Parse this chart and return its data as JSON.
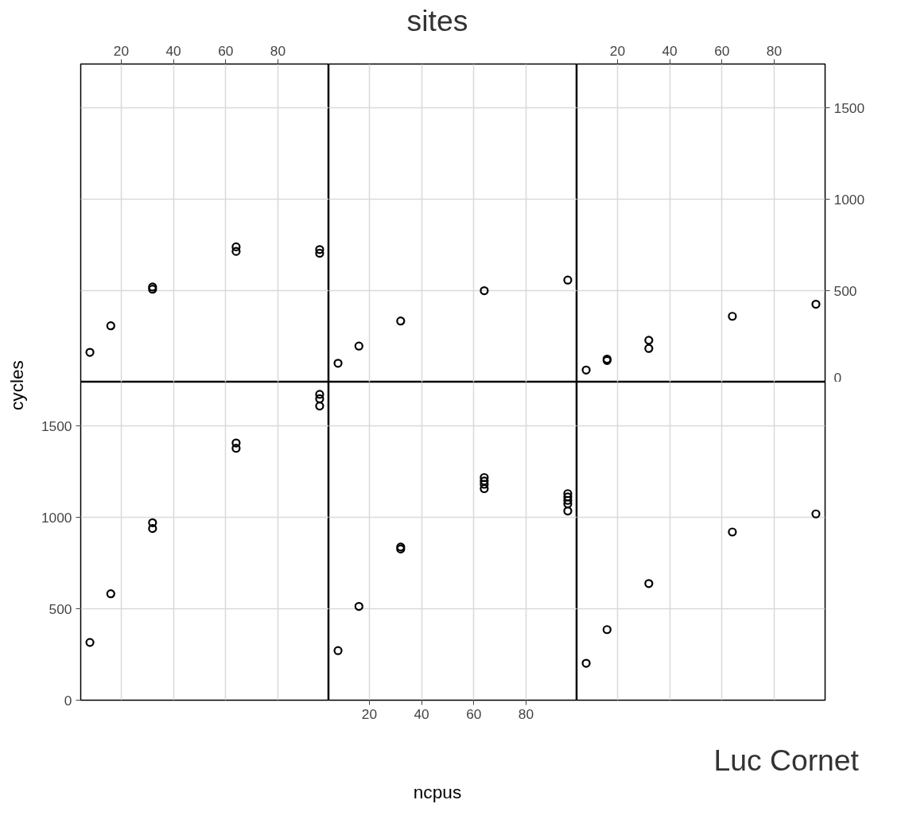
{
  "chart_data": [
    {
      "type": "scatter",
      "x": [
        8,
        16,
        32,
        32,
        64,
        64,
        96,
        96
      ],
      "values": [
        163,
        308,
        520,
        508,
        740,
        715,
        725,
        705
      ],
      "color": "#000000",
      "marker": "circle",
      "xlim": [
        4.48,
        99.52
      ],
      "ylim": [
        0,
        1740
      ],
      "xticks": [
        20,
        40,
        60,
        80
      ],
      "yticks": [
        0,
        500,
        1000,
        1500
      ],
      "grid": true,
      "tick_labels": "x"
    },
    {
      "type": "scatter",
      "title": "sites",
      "x": [
        8,
        16,
        32,
        64,
        96
      ],
      "values": [
        103,
        197,
        334,
        500,
        558
      ],
      "color": "#000000",
      "marker": "circle",
      "xlim": [
        4.48,
        99.52
      ],
      "ylim": [
        0,
        1740
      ],
      "xticks": [
        20,
        40,
        60,
        80
      ],
      "yticks": [
        0,
        500,
        1000,
        1500
      ],
      "grid": true,
      "tick_labels": false
    },
    {
      "type": "scatter",
      "x": [
        8,
        16,
        16,
        32,
        32,
        64,
        96
      ],
      "values": [
        66,
        126,
        118,
        229,
        184,
        360,
        426
      ],
      "color": "#000000",
      "marker": "circle",
      "xlim": [
        4.48,
        99.52
      ],
      "ylim": [
        0,
        1740
      ],
      "xticks": [
        20,
        40,
        60,
        80
      ],
      "yticks": [
        0,
        500,
        1000,
        1500
      ],
      "grid": true,
      "tick_labels": "xy"
    },
    {
      "type": "scatter",
      "ylabel": "cycles",
      "x": [
        8,
        16,
        32,
        32,
        64,
        64,
        96,
        96,
        96
      ],
      "values": [
        316,
        582,
        971,
        939,
        1407,
        1378,
        1673,
        1649,
        1609
      ],
      "color": "#000000",
      "marker": "circle",
      "xlim": [
        4.48,
        99.52
      ],
      "ylim": [
        0,
        1740
      ],
      "xticks": [
        20,
        40,
        60,
        80
      ],
      "yticks": [
        0,
        500,
        1000,
        1500
      ],
      "grid": true,
      "tick_labels": "y"
    },
    {
      "type": "scatter",
      "xlabel": "ncpus",
      "x": [
        8,
        16,
        32,
        32,
        64,
        64,
        64,
        64,
        96,
        96,
        96,
        96,
        96
      ],
      "values": [
        271,
        513,
        838,
        827,
        1218,
        1199,
        1181,
        1157,
        1130,
        1112,
        1093,
        1074,
        1035
      ],
      "color": "#000000",
      "marker": "circle",
      "xlim": [
        4.48,
        99.52
      ],
      "ylim": [
        0,
        1740
      ],
      "xticks": [
        20,
        40,
        60,
        80
      ],
      "yticks": [
        0,
        500,
        1000,
        1500
      ],
      "grid": true,
      "tick_labels": "x"
    },
    {
      "type": "scatter",
      "annotations": [
        "Luc Cornet"
      ],
      "x": [
        8,
        16,
        32,
        64,
        96
      ],
      "values": [
        202,
        386,
        638,
        920,
        1019
      ],
      "color": "#000000",
      "marker": "circle",
      "xlim": [
        4.48,
        99.52
      ],
      "ylim": [
        0,
        1740
      ],
      "xticks": [
        20,
        40,
        60,
        80
      ],
      "yticks": [
        0,
        500,
        1000,
        1500
      ],
      "grid": true,
      "tick_labels": false
    }
  ]
}
